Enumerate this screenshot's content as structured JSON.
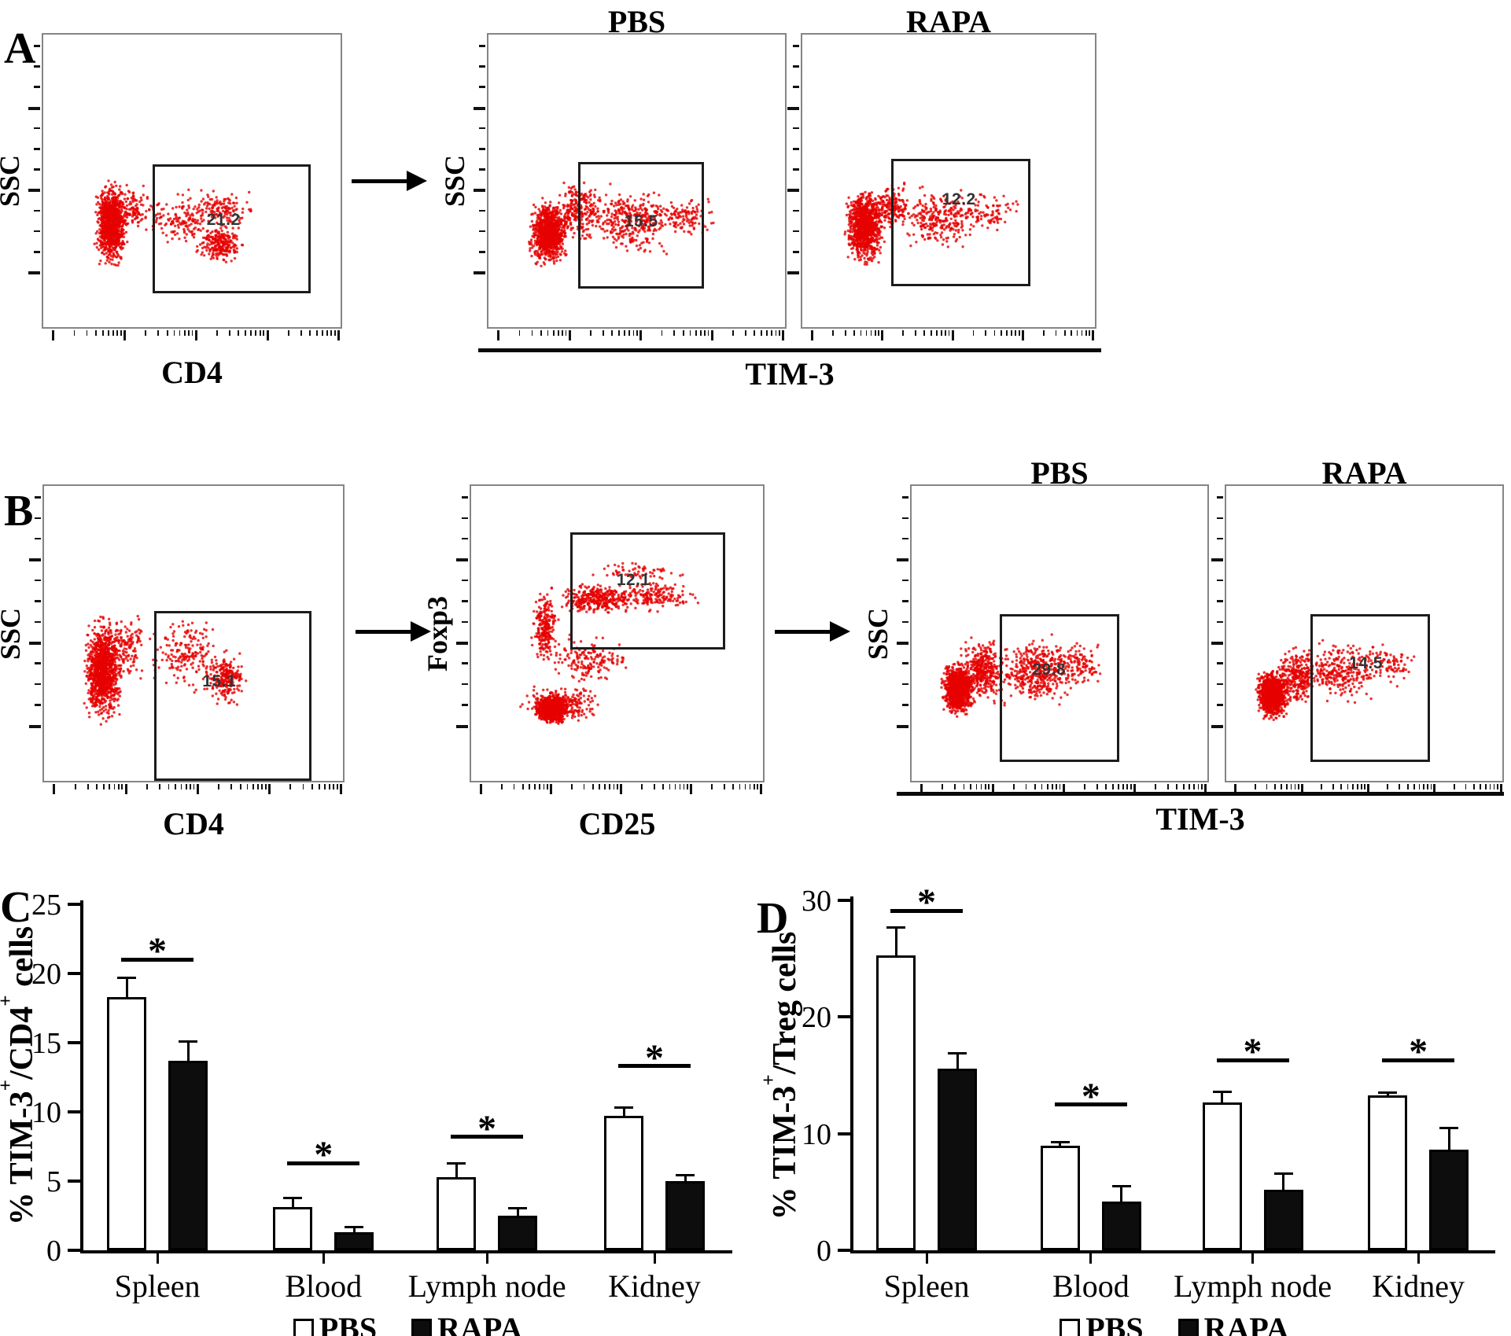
{
  "colors": {
    "dot_red": "#e60000",
    "axis": "#000000",
    "plot_border": "#858585",
    "gate_border": "#1c1c1c",
    "pbs_fill": "#ffffff",
    "rapa_fill": "#0d0d0d"
  },
  "panels": [
    {
      "id": "A",
      "label": "A",
      "shared_xlabel": "TIM-3",
      "plots": [
        {
          "title": "",
          "ylabel": "SSC",
          "xlabel": "CD4",
          "gate": {
            "value": "21.2"
          }
        },
        {
          "title": "PBS",
          "ylabel": "SSC",
          "xlabel": "",
          "gate": {
            "value": "15.5"
          }
        },
        {
          "title": "RAPA",
          "ylabel": "",
          "xlabel": "",
          "gate": {
            "value": "12.2"
          }
        }
      ]
    },
    {
      "id": "B",
      "label": "B",
      "shared_xlabel": "TIM-3",
      "plots": [
        {
          "title": "",
          "ylabel": "SSC",
          "xlabel": "CD4",
          "gate": {
            "value": "15.1"
          }
        },
        {
          "title": "",
          "ylabel": "Foxp3",
          "xlabel": "CD25",
          "gate": {
            "value": "12.1"
          }
        },
        {
          "title": "PBS",
          "ylabel": "SSC",
          "xlabel": "",
          "gate": {
            "value": "29.8"
          }
        },
        {
          "title": "RAPA",
          "ylabel": "",
          "xlabel": "",
          "gate": {
            "value": "14.5"
          }
        }
      ]
    }
  ],
  "chart_data": [
    {
      "type": "bar",
      "panel": "C",
      "title": "",
      "ylabel": "% TIM-3+/CD4+ cells",
      "categories": [
        "Spleen",
        "Blood",
        "Lymph node",
        "Kidney"
      ],
      "series": [
        {
          "name": "PBS",
          "values": [
            18.3,
            3.1,
            5.3,
            9.7
          ],
          "errors": [
            1.4,
            0.7,
            1.0,
            0.6
          ]
        },
        {
          "name": "RAPA",
          "values": [
            13.7,
            1.3,
            2.5,
            5.0
          ],
          "errors": [
            1.4,
            0.35,
            0.55,
            0.45
          ]
        }
      ],
      "ylim": [
        0,
        25
      ],
      "yticks": [
        0,
        5,
        10,
        15,
        20,
        25
      ],
      "grid": false,
      "legend_position": "bottom",
      "significance": {
        "symbol": "*",
        "line_y": [
          21.0,
          6.3,
          8.2,
          13.3
        ]
      }
    },
    {
      "type": "bar",
      "panel": "D",
      "title": "",
      "ylabel": "% TIM-3+/Treg cells",
      "categories": [
        "Spleen",
        "Blood",
        "Lymph node",
        "Kidney"
      ],
      "series": [
        {
          "name": "PBS",
          "values": [
            25.3,
            9.0,
            12.7,
            13.3
          ],
          "errors": [
            2.4,
            0.3,
            0.9,
            0.25
          ]
        },
        {
          "name": "RAPA",
          "values": [
            15.6,
            4.2,
            5.2,
            8.6
          ],
          "errors": [
            1.3,
            1.3,
            1.4,
            1.9
          ]
        }
      ],
      "ylim": [
        0,
        30
      ],
      "yticks": [
        0,
        10,
        20,
        30
      ],
      "grid": false,
      "legend_position": "bottom",
      "significance": {
        "symbol": "*",
        "line_y": [
          29.1,
          12.5,
          16.3,
          16.3
        ]
      }
    }
  ]
}
